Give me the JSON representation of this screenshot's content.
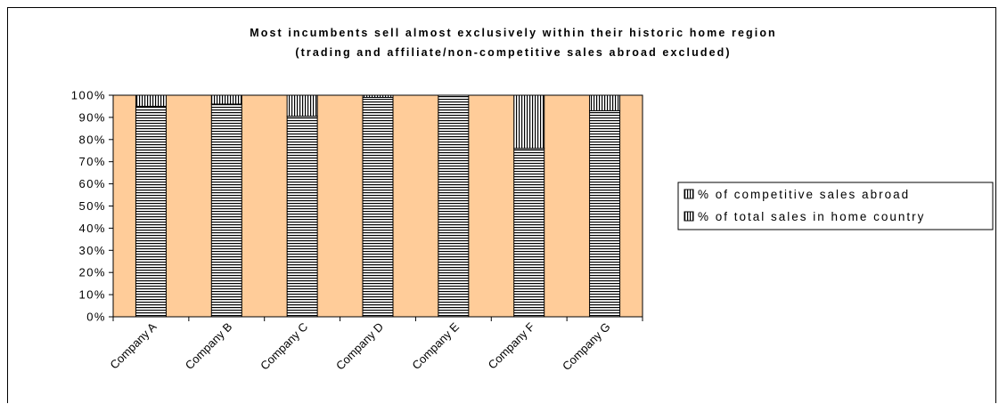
{
  "chart_data": {
    "type": "bar",
    "stacked": true,
    "title": "Most incumbents sell almost exclusively within their historic home region",
    "subtitle": "(trading and affiliate/non-competitive sales abroad excluded)",
    "categories": [
      "Company A",
      "Company B",
      "Company C",
      "Company D",
      "Company E",
      "Company F",
      "Company G"
    ],
    "series": [
      {
        "name": "% of total sales in home country",
        "values": [
          95,
          96,
          90.5,
          99,
          100,
          76,
          93
        ]
      },
      {
        "name": "% of competitive sales abroad",
        "values": [
          5,
          4,
          9.5,
          1,
          0,
          24,
          7
        ]
      }
    ],
    "y_ticks": [
      "0%",
      "10%",
      "20%",
      "30%",
      "40%",
      "50%",
      "60%",
      "70%",
      "80%",
      "90%",
      "100%"
    ],
    "ylim": [
      0,
      100
    ],
    "legend_order": [
      "% of competitive sales abroad",
      "% of total sales in home country"
    ],
    "legend_position": "right",
    "grid": false,
    "plot_background": "#FFCC99",
    "bar_fill": "#ffffff",
    "pattern_color": "#000000"
  }
}
